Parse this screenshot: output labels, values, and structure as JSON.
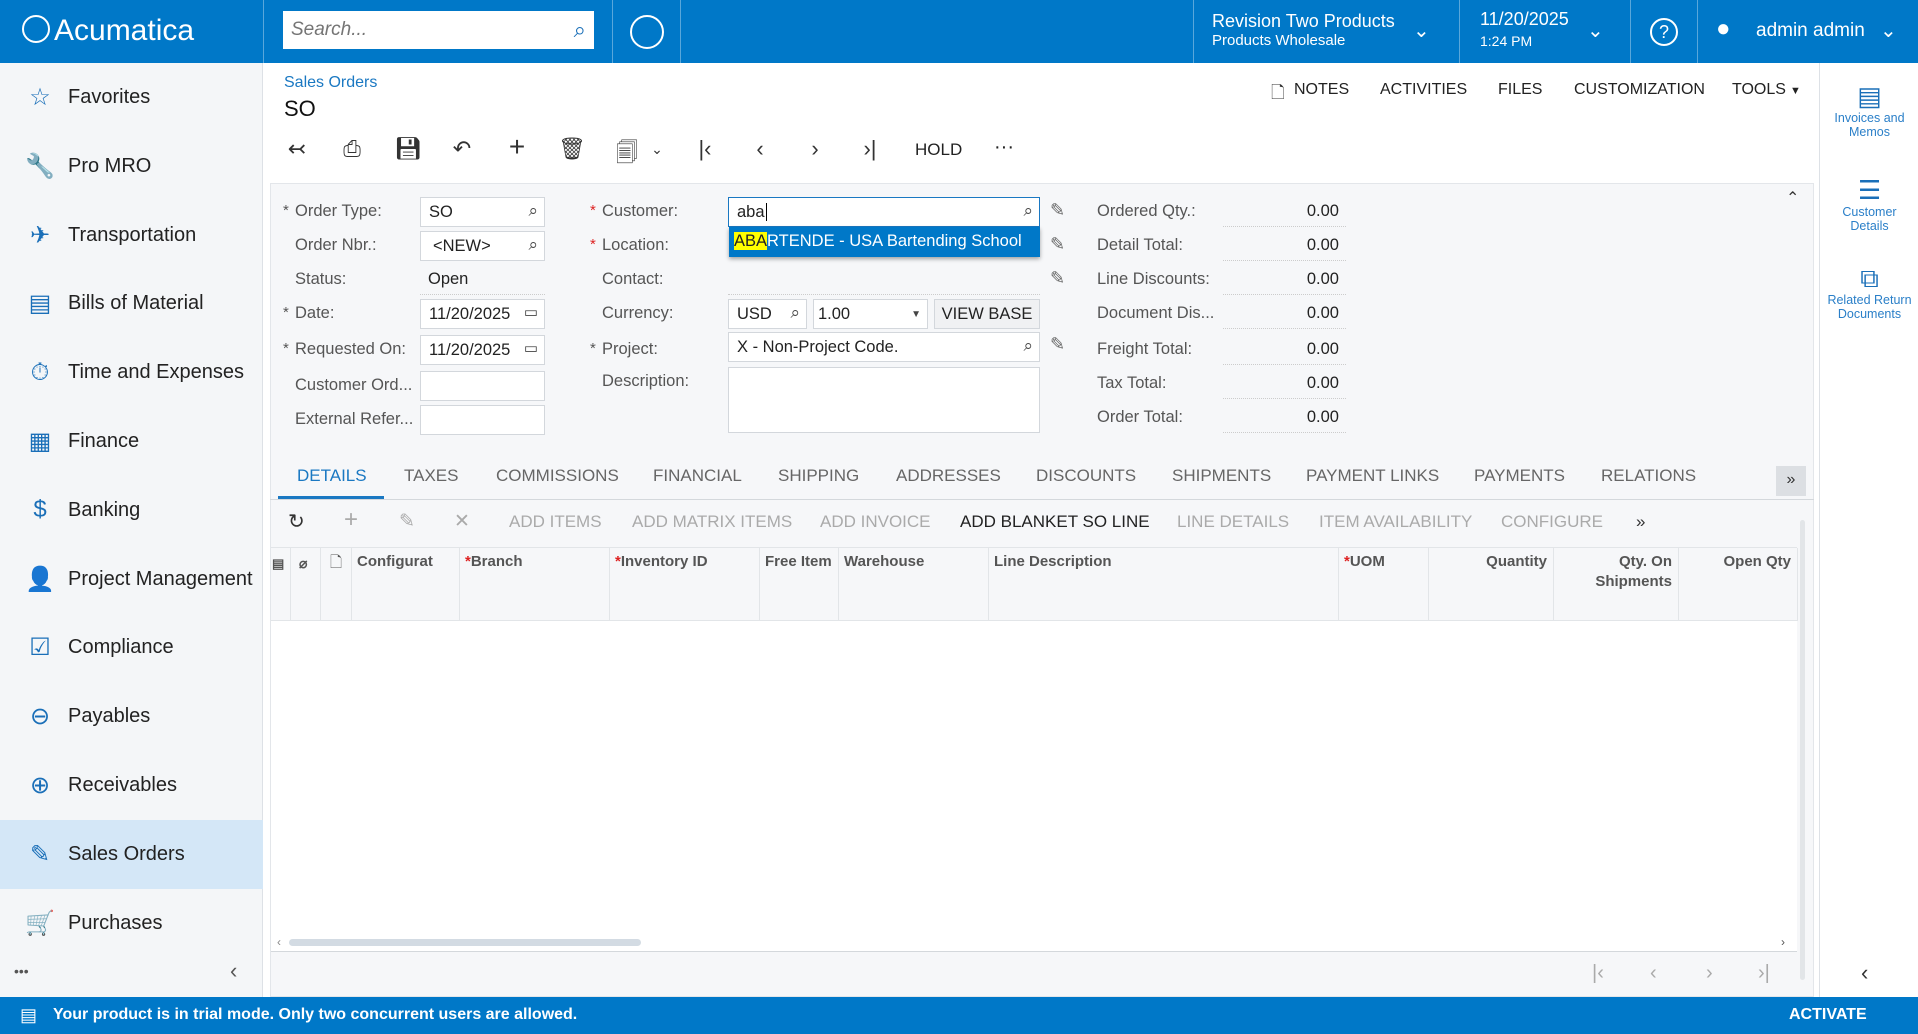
{
  "topbar": {
    "logo": "Acumatica",
    "search_placeholder": "Search...",
    "company": "Revision Two Products",
    "branch": "Products Wholesale",
    "date": "11/20/2025",
    "time": "1:24 PM",
    "user": "admin admin"
  },
  "sidebar": {
    "items": [
      {
        "label": "Favorites",
        "icon": "☆",
        "name": "star-icon"
      },
      {
        "label": "Pro MRO",
        "icon": "🔧",
        "name": "wrench-icon"
      },
      {
        "label": "Transportation",
        "icon": "✈",
        "name": "airplane-icon"
      },
      {
        "label": "Bills of Material",
        "icon": "▤",
        "name": "document-dollar-icon"
      },
      {
        "label": "Time and Expenses",
        "icon": "⏱",
        "name": "stopwatch-icon"
      },
      {
        "label": "Finance",
        "icon": "▦",
        "name": "calculator-icon"
      },
      {
        "label": "Banking",
        "icon": "$",
        "name": "dollar-icon"
      },
      {
        "label": "Project Management",
        "icon": "👤",
        "name": "person-icon"
      },
      {
        "label": "Compliance",
        "icon": "☑",
        "name": "checklist-icon"
      },
      {
        "label": "Payables",
        "icon": "⊖",
        "name": "minus-circle-icon"
      },
      {
        "label": "Receivables",
        "icon": "⊕",
        "name": "plus-circle-icon"
      },
      {
        "label": "Sales Orders",
        "icon": "✎",
        "name": "edit-icon",
        "selected": true
      },
      {
        "label": "Purchases",
        "icon": "🛒",
        "name": "cart-icon"
      }
    ],
    "more": "•••"
  },
  "header": {
    "breadcrumb": "Sales Orders",
    "title": "SO",
    "links": [
      "NOTES",
      "ACTIVITIES",
      "FILES",
      "CUSTOMIZATION",
      "TOOLS"
    ],
    "hold": "HOLD",
    "more": "···"
  },
  "form": {
    "order_type_label": "Order Type:",
    "order_type": "SO",
    "order_nbr_label": "Order Nbr.:",
    "order_nbr": "<NEW>",
    "status_label": "Status:",
    "status": "Open",
    "date_label": "Date:",
    "date": "11/20/2025",
    "requested_on_label": "Requested On:",
    "requested_on": "11/20/2025",
    "customer_ord_label": "Customer Ord...",
    "customer_ord": "",
    "external_ref_label": "External Refer...",
    "external_ref": "",
    "customer_label": "Customer:",
    "customer": "aba",
    "location_label": "Location:",
    "contact_label": "Contact:",
    "currency_label": "Currency:",
    "currency": "USD",
    "rate": "1.00",
    "view_base": "VIEW BASE",
    "project_label": "Project:",
    "project": "X - Non-Project Code.",
    "description_label": "Description:",
    "description": "",
    "suggestion_highlight": "ABA",
    "suggestion_rest": "RTENDE - USA Bartending School",
    "totals": [
      {
        "label": "Ordered Qty.:",
        "value": "0.00"
      },
      {
        "label": "Detail Total:",
        "value": "0.00"
      },
      {
        "label": "Line Discounts:",
        "value": "0.00"
      },
      {
        "label": "Document Dis...",
        "value": "0.00"
      },
      {
        "label": "Freight Total:",
        "value": "0.00"
      },
      {
        "label": "Tax Total:",
        "value": "0.00"
      },
      {
        "label": "Order Total:",
        "value": "0.00"
      }
    ]
  },
  "tabs": [
    "DETAILS",
    "TAXES",
    "COMMISSIONS",
    "FINANCIAL",
    "SHIPPING",
    "ADDRESSES",
    "DISCOUNTS",
    "SHIPMENTS",
    "PAYMENT LINKS",
    "PAYMENTS",
    "RELATIONS"
  ],
  "grid_toolbar": [
    {
      "label": "ADD ITEMS",
      "enabled": false
    },
    {
      "label": "ADD MATRIX ITEMS",
      "enabled": false
    },
    {
      "label": "ADD INVOICE",
      "enabled": false
    },
    {
      "label": "ADD BLANKET SO LINE",
      "enabled": true
    },
    {
      "label": "LINE DETAILS",
      "enabled": false
    },
    {
      "label": "ITEM AVAILABILITY",
      "enabled": false
    },
    {
      "label": "CONFIGURE",
      "enabled": false
    }
  ],
  "columns": [
    {
      "label": "Configurat",
      "req": false
    },
    {
      "label": "Branch",
      "req": true
    },
    {
      "label": "Inventory ID",
      "req": true
    },
    {
      "label": "Free Item",
      "req": false
    },
    {
      "label": "Warehouse",
      "req": false
    },
    {
      "label": "Line Description",
      "req": false
    },
    {
      "label": "UOM",
      "req": true
    },
    {
      "label": "Quantity",
      "req": false,
      "right": true
    },
    {
      "label": "Qty. On Shipments",
      "req": false,
      "right": true
    },
    {
      "label": "Open Qty",
      "req": false,
      "right": true
    }
  ],
  "right_panel": [
    {
      "label": "Invoices and Memos",
      "name": "invoice-icon"
    },
    {
      "label": "Customer Details",
      "name": "customer-details-icon"
    },
    {
      "label": "Related Return Documents",
      "name": "related-documents-icon"
    }
  ],
  "bottom": {
    "message": "Your product is in trial mode. Only two concurrent users are allowed.",
    "activate": "ACTIVATE"
  },
  "colors": {
    "brand": "#0078c8",
    "highlight": "#ffff00",
    "selected_nav": "#d4e7f7"
  }
}
